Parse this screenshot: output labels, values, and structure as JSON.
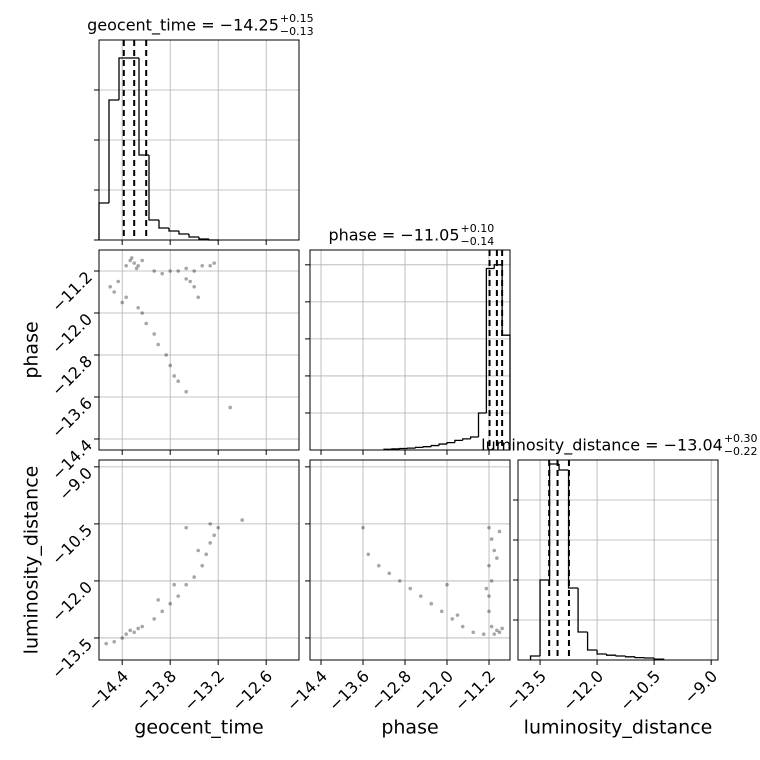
{
  "chart_data": [
    {
      "type": "histogram",
      "title": "geocent_time = −14.25",
      "title_upper": "+0.15",
      "title_lower": "−0.13",
      "color": "#000000",
      "grid": true,
      "bins": [
        -14.69,
        -14.565,
        -14.44,
        -14.315,
        -14.19,
        -14.065,
        -13.94,
        -13.815,
        -13.69,
        -13.565,
        -13.44,
        -13.315,
        -13.19
      ],
      "counts": [
        37,
        140,
        182,
        182,
        85,
        20,
        12,
        9,
        6,
        3,
        1,
        0
      ],
      "quantiles": [
        -14.38,
        -14.25,
        -14.1
      ],
      "xlim": [
        -14.69,
        -12.19
      ],
      "xticks": [
        -14.4,
        -13.8,
        -13.2,
        -12.6
      ],
      "ylim": [
        0,
        200
      ],
      "yticks": [
        0,
        50,
        100,
        150
      ]
    },
    {
      "type": "scatter",
      "color": "#000000",
      "grid": true,
      "ylabel": "phase",
      "x": [
        -14.3,
        -14.25,
        -14.2,
        -14.35,
        -14.15,
        -14.28,
        -14.22,
        -14.0,
        -13.9,
        -13.8,
        -13.7,
        -13.6,
        -13.5,
        -13.4,
        -13.3,
        -13.25,
        -13.6,
        -13.5,
        -13.45,
        -13.55,
        -14.45,
        -14.5,
        -14.4,
        -14.35,
        -14.2,
        -14.1,
        -14.0,
        -13.95,
        -13.85,
        -13.8,
        -13.75,
        -13.7,
        -13.6,
        -13.05,
        -14.55,
        -14.15
      ],
      "y": [
        -11.0,
        -11.05,
        -11.1,
        -11.1,
        -11.0,
        -10.95,
        -11.15,
        -11.2,
        -11.25,
        -11.2,
        -11.2,
        -11.15,
        -11.2,
        -11.1,
        -11.1,
        -11.05,
        -11.35,
        -11.5,
        -11.7,
        -11.4,
        -11.4,
        -11.6,
        -11.8,
        -11.7,
        -11.9,
        -12.2,
        -12.4,
        -12.6,
        -12.8,
        -13.0,
        -13.2,
        -13.3,
        -13.5,
        -13.8,
        -11.5,
        -12.0
      ],
      "xlim": [
        -14.69,
        -12.19
      ],
      "xticks": [
        -14.4,
        -13.8,
        -13.2,
        -12.6
      ],
      "ylim": [
        -14.61,
        -10.8
      ],
      "yticks": [
        {
          "value": -11.2,
          "label": "−11.2"
        },
        {
          "value": -12.0,
          "label": "−12.0"
        },
        {
          "value": -12.8,
          "label": "−12.8"
        },
        {
          "value": -13.6,
          "label": "−13.6"
        },
        {
          "value": -14.4,
          "label": "−14.4"
        }
      ]
    },
    {
      "type": "histogram",
      "title": "phase = −11.05",
      "title_upper": "+0.10",
      "title_lower": "−0.14",
      "color": "#000000",
      "grid": true,
      "bins": [
        -13.2,
        -13.05,
        -12.9,
        -12.75,
        -12.6,
        -12.45,
        -12.3,
        -12.15,
        -12.0,
        -11.85,
        -11.7,
        -11.55,
        -11.4,
        -11.25,
        -11.1,
        -10.95,
        -10.8
      ],
      "counts": [
        0.02,
        0.03,
        0.04,
        0.05,
        0.07,
        0.09,
        0.12,
        0.16,
        0.2,
        0.26,
        0.3,
        0.35,
        1.0,
        4.9,
        5.0,
        3.1
      ],
      "quantiles": [
        -11.19,
        -11.05,
        -10.95
      ],
      "xlim": [
        -14.61,
        -10.8
      ],
      "xticks": [
        -14.4,
        -13.6,
        -12.8,
        -12.0,
        -11.2
      ],
      "ylim": [
        0,
        5.4
      ],
      "yticks": [
        1,
        2,
        3,
        4,
        5
      ]
    },
    {
      "type": "scatter",
      "color": "#000000",
      "grid": true,
      "xlabel": "geocent_time",
      "ylabel": "luminosity_distance",
      "x": [
        -14.3,
        -14.25,
        -14.2,
        -14.35,
        -14.15,
        -14.4,
        -14.5,
        -14.6,
        -14.0,
        -13.9,
        -13.8,
        -13.7,
        -13.6,
        -13.5,
        -13.4,
        -13.35,
        -13.3,
        -13.25,
        -13.2,
        -13.3,
        -13.6,
        -13.95,
        -13.75,
        -13.45,
        -12.9
      ],
      "y": [
        -13.3,
        -13.35,
        -13.25,
        -13.4,
        -13.2,
        -13.5,
        -13.6,
        -13.65,
        -13.0,
        -12.8,
        -12.6,
        -12.4,
        -12.1,
        -11.9,
        -11.6,
        -11.3,
        -11.0,
        -10.8,
        -10.6,
        -10.5,
        -10.6,
        -12.5,
        -12.1,
        -11.2,
        -10.4
      ],
      "xlim": [
        -14.69,
        -12.19
      ],
      "xticks": [
        {
          "value": -14.4,
          "label": "−14.4"
        },
        {
          "value": -13.8,
          "label": "−13.8"
        },
        {
          "value": -13.2,
          "label": "−13.2"
        },
        {
          "value": -12.6,
          "label": "−12.6"
        }
      ],
      "ylim": [
        -14.08,
        -8.82
      ],
      "yticks": [
        {
          "value": -9.0,
          "label": "−9.0"
        },
        {
          "value": -10.5,
          "label": "−10.5"
        },
        {
          "value": -12.0,
          "label": "−12.0"
        },
        {
          "value": -13.5,
          "label": "−13.5"
        }
      ]
    },
    {
      "type": "scatter",
      "color": "#000000",
      "grid": true,
      "xlabel": "phase",
      "x": [
        -11.05,
        -11.0,
        -10.95,
        -11.1,
        -11.15,
        -11.3,
        -11.5,
        -11.7,
        -11.9,
        -12.1,
        -12.3,
        -12.5,
        -12.7,
        -12.9,
        -13.1,
        -13.3,
        -13.5,
        -13.6,
        -11.2,
        -11.2,
        -11.15,
        -11.2,
        -11.1,
        -11.15,
        -11.2,
        -11.0,
        -11.05,
        -11.25,
        -12.0,
        -11.8
      ],
      "y": [
        -13.3,
        -13.35,
        -13.25,
        -13.4,
        -13.2,
        -13.4,
        -13.35,
        -13.2,
        -13.0,
        -12.8,
        -12.6,
        -12.4,
        -12.2,
        -12.0,
        -11.8,
        -11.6,
        -11.3,
        -10.6,
        -12.8,
        -12.4,
        -12.0,
        -11.6,
        -11.2,
        -10.9,
        -10.6,
        -10.7,
        -11.4,
        -12.2,
        -12.1,
        -12.9
      ],
      "xlim": [
        -14.61,
        -10.8
      ],
      "xticks": [
        {
          "value": -14.4,
          "label": "−14.4"
        },
        {
          "value": -13.6,
          "label": "−13.6"
        },
        {
          "value": -12.8,
          "label": "−12.8"
        },
        {
          "value": -12.0,
          "label": "−12.0"
        },
        {
          "value": -11.2,
          "label": "−11.2"
        }
      ],
      "ylim": [
        -14.08,
        -8.82
      ],
      "yticks": [
        -9.0,
        -10.5,
        -12.0,
        -13.5
      ]
    },
    {
      "type": "histogram",
      "title": "luminosity_distance = −13.04",
      "title_upper": "+0.30",
      "title_lower": "−0.22",
      "color": "#000000",
      "grid": true,
      "xlabel": "luminosity_distance",
      "bins": [
        -13.75,
        -13.5,
        -13.25,
        -13.0,
        -12.75,
        -12.5,
        -12.25,
        -12.0,
        -11.75,
        -11.5,
        -11.25,
        -11.0,
        -10.75,
        -10.5,
        -10.25
      ],
      "counts": [
        0.1,
        2.0,
        4.9,
        4.75,
        1.8,
        0.7,
        0.25,
        0.15,
        0.12,
        0.1,
        0.08,
        0.06,
        0.05,
        0.02
      ],
      "quantiles": [
        -13.26,
        -13.04,
        -12.74
      ],
      "xlim": [
        -14.08,
        -8.82
      ],
      "xticks": [
        {
          "value": -13.5,
          "label": "−13.5"
        },
        {
          "value": -12.0,
          "label": "−12.0"
        },
        {
          "value": -10.5,
          "label": "−10.5"
        },
        {
          "value": -9.0,
          "label": "−9.0"
        }
      ],
      "ylim": [
        0,
        5
      ],
      "yticks": [
        1,
        2,
        3,
        4
      ]
    }
  ]
}
